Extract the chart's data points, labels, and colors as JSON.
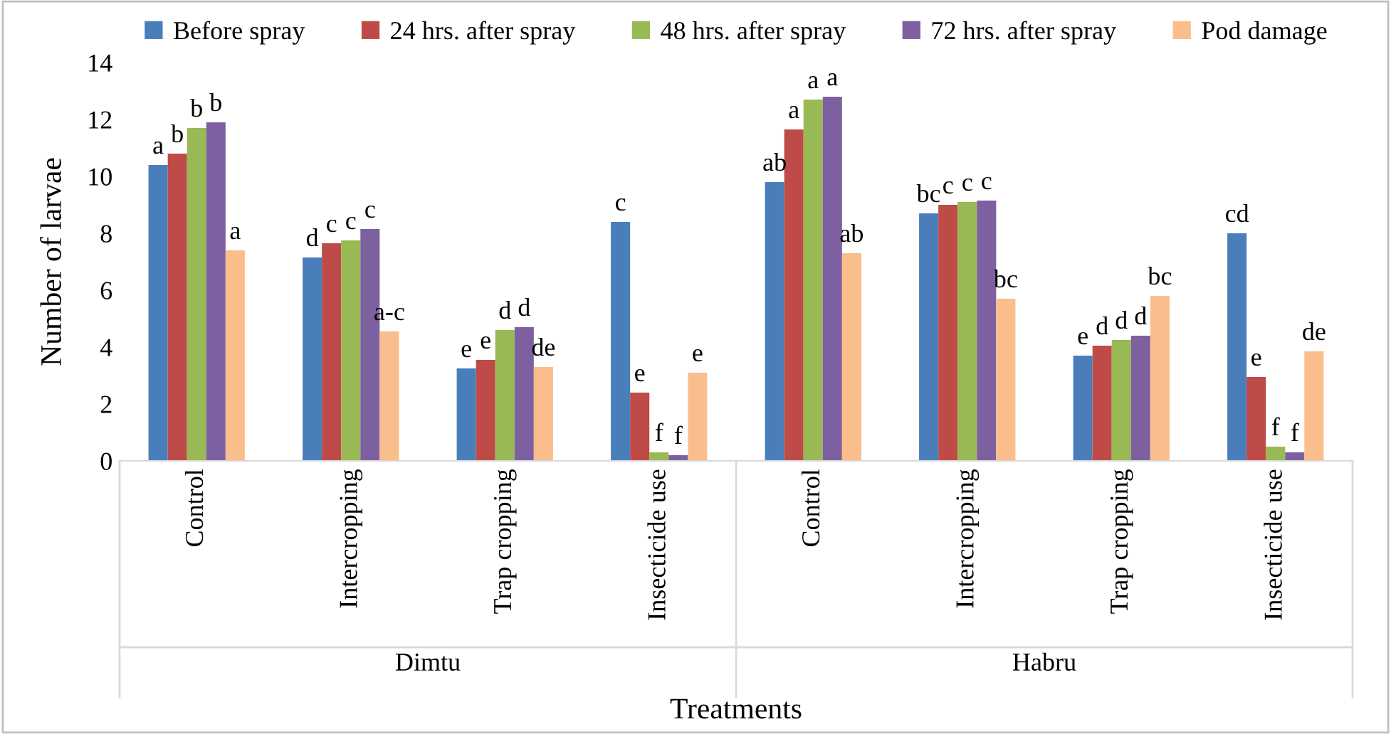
{
  "chart_data": {
    "type": "bar",
    "xlabel": "Treatments",
    "ylabel": "Number of larvae",
    "categories": [
      "Control",
      "Intercropping",
      "Trap cropping",
      "Insecticide use",
      "Control",
      "Intercropping",
      "Trap cropping",
      "Insecticide use"
    ],
    "annotations": [
      "Dimtu",
      "Habru"
    ],
    "series": [
      {
        "name": "Before spray",
        "color": "#4a7ebb",
        "values": [
          10.4,
          7.15,
          3.25,
          8.4,
          9.8,
          8.7,
          3.7,
          8.0
        ],
        "value_labels": [
          "a",
          "d",
          "e",
          "c",
          "ab",
          "bc",
          "e",
          "cd"
        ]
      },
      {
        "name": "24 hrs. after spray",
        "color": "#be4b48",
        "values": [
          10.8,
          7.65,
          3.55,
          2.4,
          11.65,
          9.0,
          4.05,
          2.95
        ],
        "value_labels": [
          "b",
          "c",
          "e",
          "e",
          "a",
          "c",
          "d",
          "e"
        ]
      },
      {
        "name": "48 hrs. after spray",
        "color": "#98b954",
        "values": [
          11.7,
          7.75,
          4.6,
          0.3,
          12.7,
          9.1,
          4.25,
          0.5
        ],
        "value_labels": [
          "b",
          "c",
          "d",
          "f",
          "a",
          "c",
          "d",
          "f"
        ]
      },
      {
        "name": "72 hrs. after spray",
        "color": "#7d60a0",
        "values": [
          11.9,
          8.15,
          4.7,
          0.2,
          12.8,
          9.15,
          4.4,
          0.3
        ],
        "value_labels": [
          "b",
          "c",
          "d",
          "f",
          "a",
          "c",
          "d",
          "f"
        ]
      },
      {
        "name": "Pod damage",
        "color": "#f9be8c",
        "values": [
          7.4,
          4.55,
          3.3,
          3.1,
          7.3,
          5.7,
          5.8,
          3.85
        ],
        "value_labels": [
          "a",
          "a-c",
          "de",
          "e",
          "ab",
          "bc",
          "bc",
          "de"
        ]
      }
    ],
    "ylim": [
      0,
      14
    ],
    "yticks": [
      0,
      2,
      4,
      6,
      8,
      10,
      12,
      14
    ],
    "grid": false,
    "legend": "top"
  }
}
